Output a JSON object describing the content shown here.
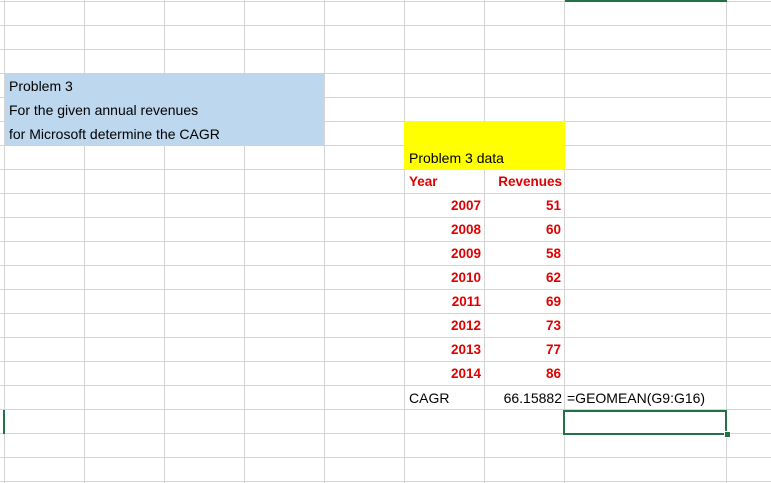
{
  "problem": {
    "line1": "Problem 3",
    "line2": "For the given annual revenues",
    "line3": "for Microsoft determine the CAGR"
  },
  "data_table": {
    "title": "Problem 3 data",
    "header_year": "Year",
    "header_revenues": "Revenues",
    "rows": [
      {
        "year": "2007",
        "revenue": "51"
      },
      {
        "year": "2008",
        "revenue": "60"
      },
      {
        "year": "2009",
        "revenue": "58"
      },
      {
        "year": "2010",
        "revenue": "62"
      },
      {
        "year": "2011",
        "revenue": "69"
      },
      {
        "year": "2012",
        "revenue": "73"
      },
      {
        "year": "2013",
        "revenue": "77"
      },
      {
        "year": "2014",
        "revenue": "86"
      }
    ],
    "cagr_label": "CAGR",
    "cagr_value": "66.15882",
    "cagr_formula": "=GEOMEAN(G9:G16)"
  },
  "colors": {
    "header_fill": "#bdd7ee",
    "data_title_fill": "#ffff00",
    "red_text": "#e00000",
    "selection": "#217346"
  }
}
